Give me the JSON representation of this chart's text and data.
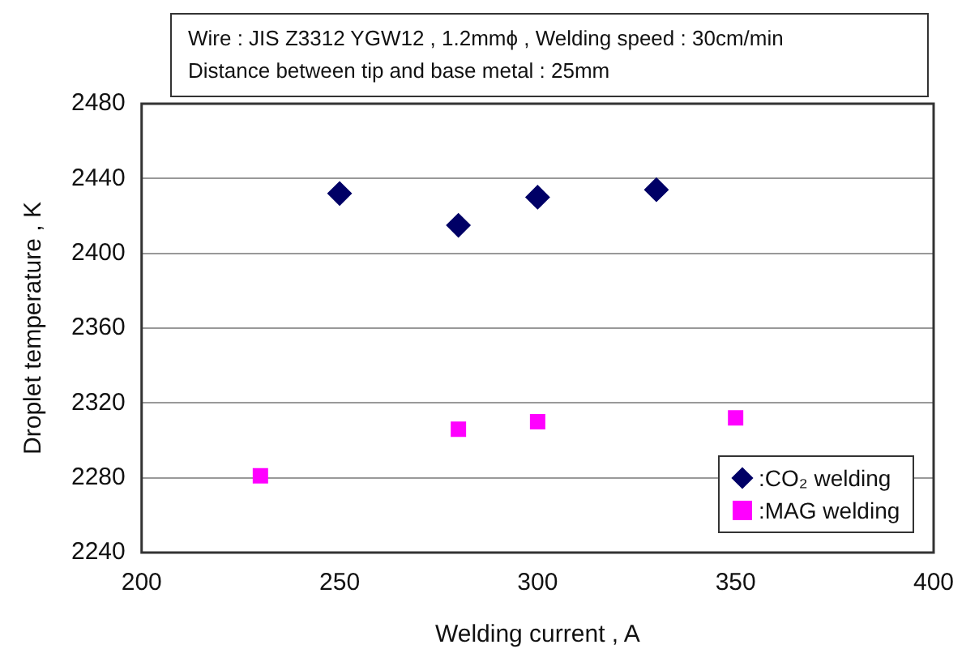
{
  "chart_data": {
    "type": "scatter",
    "xlabel": "Welding current , A",
    "ylabel": "Droplet temperature , K",
    "annotations": [
      "Wire : JIS Z3312 YGW12 , 1.2mmϕ , Welding speed : 30cm/min",
      "Distance between tip and base metal : 25mm"
    ],
    "series": [
      {
        "name": ":CO₂ welding",
        "color": "#000066",
        "marker": "diamond",
        "x": [
          250,
          280,
          300,
          330
        ],
        "values": [
          2432,
          2415,
          2430,
          2434
        ]
      },
      {
        "name": ":MAG welding",
        "color": "#ff00ff",
        "marker": "square",
        "x": [
          230,
          280,
          300,
          350
        ],
        "values": [
          2281,
          2306,
          2310,
          2312
        ]
      }
    ],
    "xlim": [
      200,
      400
    ],
    "xticks": [
      200,
      250,
      300,
      350,
      400
    ],
    "ylim": [
      2240,
      2480
    ],
    "yticks": [
      2240,
      2280,
      2320,
      2360,
      2400,
      2440,
      2480
    ],
    "grid": "y",
    "legend": "bottom right"
  }
}
